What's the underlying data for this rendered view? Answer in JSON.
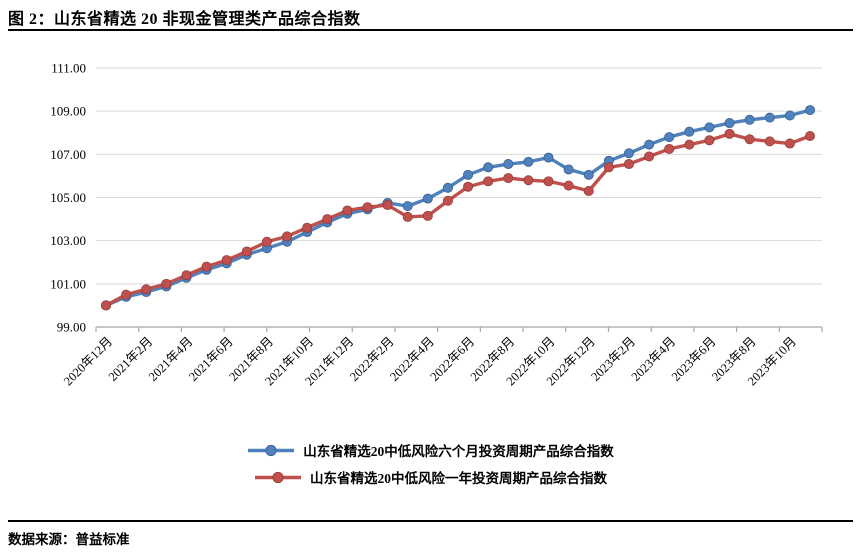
{
  "header": {
    "title": "图 2：山东省精选 20 非现金管理类产品综合指数"
  },
  "footer": {
    "source": "数据来源：普益标准"
  },
  "colors": {
    "grid": "#D9D9D9",
    "axis": "#A6A6A6",
    "text": "#000000"
  },
  "chart_data": {
    "type": "line",
    "title": "图 2：山东省精选 20 非现金管理类产品综合指数",
    "xlabel": "",
    "ylabel": "",
    "ylim": [
      99,
      111
    ],
    "yticks": [
      99,
      101,
      103,
      105,
      107,
      109,
      111
    ],
    "grid": true,
    "legend_position": "bottom",
    "x_tick_every": 2,
    "x_categories": [
      "2020年12月",
      "2021年1月",
      "2021年2月",
      "2021年3月",
      "2021年4月",
      "2021年5月",
      "2021年6月",
      "2021年7月",
      "2021年8月",
      "2021年9月",
      "2021年10月",
      "2021年11月",
      "2021年12月",
      "2022年1月",
      "2022年2月",
      "2022年3月",
      "2022年4月",
      "2022年5月",
      "2022年6月",
      "2022年7月",
      "2022年8月",
      "2022年9月",
      "2022年10月",
      "2022年11月",
      "2022年12月",
      "2023年1月",
      "2023年2月",
      "2023年3月",
      "2023年4月",
      "2023年5月",
      "2023年6月",
      "2023年7月",
      "2023年8月",
      "2023年9月",
      "2023年10月",
      "2023年11月"
    ],
    "series": [
      {
        "name": "山东省精选20中低风险六个月投资周期产品综合指数",
        "color": "#4F81BD",
        "marker_border": "#3A6191",
        "values": [
          100.0,
          100.4,
          100.62,
          100.88,
          101.28,
          101.65,
          101.95,
          102.35,
          102.65,
          102.95,
          103.4,
          103.85,
          104.25,
          104.45,
          104.75,
          104.6,
          104.95,
          105.45,
          106.05,
          106.4,
          106.55,
          106.65,
          106.85,
          106.3,
          106.05,
          106.7,
          107.05,
          107.45,
          107.8,
          108.05,
          108.25,
          108.45,
          108.6,
          108.7,
          108.8,
          109.05
        ]
      },
      {
        "name": "山东省精选20中低风险一年投资周期产品综合指数",
        "color": "#C0504D",
        "marker_border": "#953C39",
        "values": [
          100.0,
          100.5,
          100.75,
          101.0,
          101.4,
          101.8,
          102.1,
          102.5,
          102.95,
          103.2,
          103.6,
          104.0,
          104.4,
          104.55,
          104.65,
          104.1,
          104.15,
          104.85,
          105.5,
          105.75,
          105.9,
          105.8,
          105.75,
          105.55,
          105.3,
          106.4,
          106.55,
          106.9,
          107.25,
          107.45,
          107.65,
          107.95,
          107.7,
          107.6,
          107.5,
          107.85
        ]
      }
    ]
  }
}
